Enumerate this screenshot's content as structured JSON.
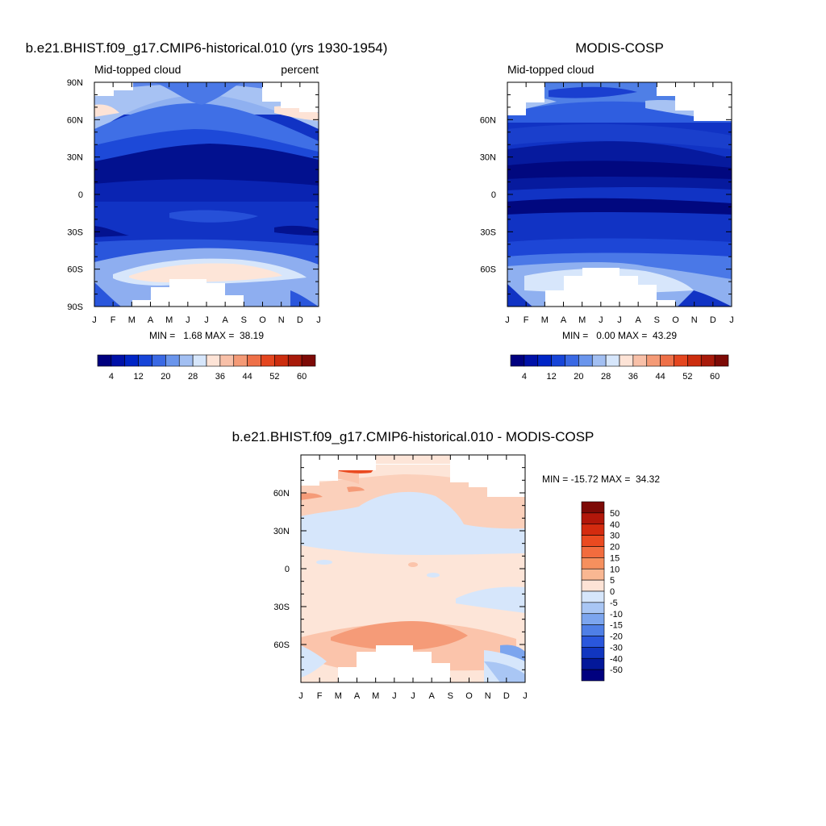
{
  "chart_data": [
    {
      "type": "heatmap",
      "title": "b.e21.BHIST.f09_g17.CMIP6-historical.010 (yrs 1930-1954)",
      "left_label": "Mid-topped cloud",
      "right_label": "percent",
      "x_tick_labels": [
        "J",
        "F",
        "M",
        "A",
        "M",
        "J",
        "J",
        "A",
        "S",
        "O",
        "N",
        "D",
        "J"
      ],
      "y_tick_labels": [
        "90N",
        "60N",
        "30N",
        "0",
        "30S",
        "60S",
        "90S"
      ],
      "y_tick_values": [
        90,
        60,
        30,
        0,
        -30,
        -60,
        -90
      ],
      "stats": "MIN =   1.68 MAX =  38.19",
      "min": 1.68,
      "max": 38.19,
      "colorbar": {
        "orientation": "horizontal",
        "levels": [
          0,
          4,
          8,
          12,
          16,
          20,
          24,
          28,
          32,
          36,
          40,
          44,
          48,
          52,
          56,
          60
        ],
        "tick_labels": [
          "4",
          "12",
          "20",
          "28",
          "36",
          "44",
          "52",
          "60"
        ],
        "colors": [
          "#00007f",
          "#0011a8",
          "#0025c6",
          "#1745d8",
          "#3a69e4",
          "#6a95ec",
          "#a2bff2",
          "#d6e6fb",
          "#fde3d6",
          "#f8c0a8",
          "#f49a76",
          "#ee7048",
          "#e4461f",
          "#cc2d0e",
          "#a81a0a",
          "#7d0a06"
        ]
      },
      "missing": [
        "high-latitude NH winter months",
        "SH polar winter (May-Sep)"
      ]
    },
    {
      "type": "heatmap",
      "title": "MODIS-COSP",
      "left_label": "Mid-topped cloud",
      "x_tick_labels": [
        "J",
        "F",
        "M",
        "A",
        "M",
        "J",
        "J",
        "A",
        "S",
        "O",
        "N",
        "D",
        "J"
      ],
      "y_tick_labels": [
        "60N",
        "30N",
        "0",
        "30S",
        "60S"
      ],
      "y_tick_values": [
        60,
        30,
        0,
        -30,
        -60
      ],
      "stats": "MIN =   0.00 MAX =  43.29",
      "min": 0.0,
      "max": 43.29,
      "colorbar": {
        "orientation": "horizontal",
        "levels": [
          0,
          4,
          8,
          12,
          16,
          20,
          24,
          28,
          32,
          36,
          40,
          44,
          48,
          52,
          56,
          60
        ],
        "tick_labels": [
          "4",
          "12",
          "20",
          "28",
          "36",
          "44",
          "52",
          "60"
        ],
        "colors": [
          "#00007f",
          "#0011a8",
          "#0025c6",
          "#1745d8",
          "#3a69e4",
          "#6a95ec",
          "#a2bff2",
          "#d6e6fb",
          "#fde3d6",
          "#f8c0a8",
          "#f49a76",
          "#ee7048",
          "#e4461f",
          "#cc2d0e",
          "#a81a0a",
          "#7d0a06"
        ]
      }
    },
    {
      "type": "heatmap",
      "title": "b.e21.BHIST.f09_g17.CMIP6-historical.010 - MODIS-COSP",
      "x_tick_labels": [
        "J",
        "F",
        "M",
        "A",
        "M",
        "J",
        "J",
        "A",
        "S",
        "O",
        "N",
        "D",
        "J"
      ],
      "y_tick_labels": [
        "60N",
        "30N",
        "0",
        "30S",
        "60S"
      ],
      "y_tick_values": [
        60,
        30,
        0,
        -30,
        -60
      ],
      "stats": "MIN = -15.72 MAX =  34.32",
      "min": -15.72,
      "max": 34.32,
      "colorbar": {
        "orientation": "vertical",
        "tick_labels": [
          "50",
          "40",
          "30",
          "20",
          "15",
          "10",
          "5",
          "0",
          "-5",
          "-10",
          "-15",
          "-20",
          "-30",
          "-40",
          "-50"
        ],
        "colors": [
          "#7d0a06",
          "#b2170a",
          "#d42b0f",
          "#ea4a20",
          "#f26c3e",
          "#f6905e",
          "#f9b792",
          "#fde3d6",
          "#d6e6fb",
          "#a9c6f4",
          "#7ca5ee",
          "#4f7fe6",
          "#2a57dc",
          "#1136c0",
          "#03189a",
          "#00007f"
        ]
      }
    }
  ]
}
